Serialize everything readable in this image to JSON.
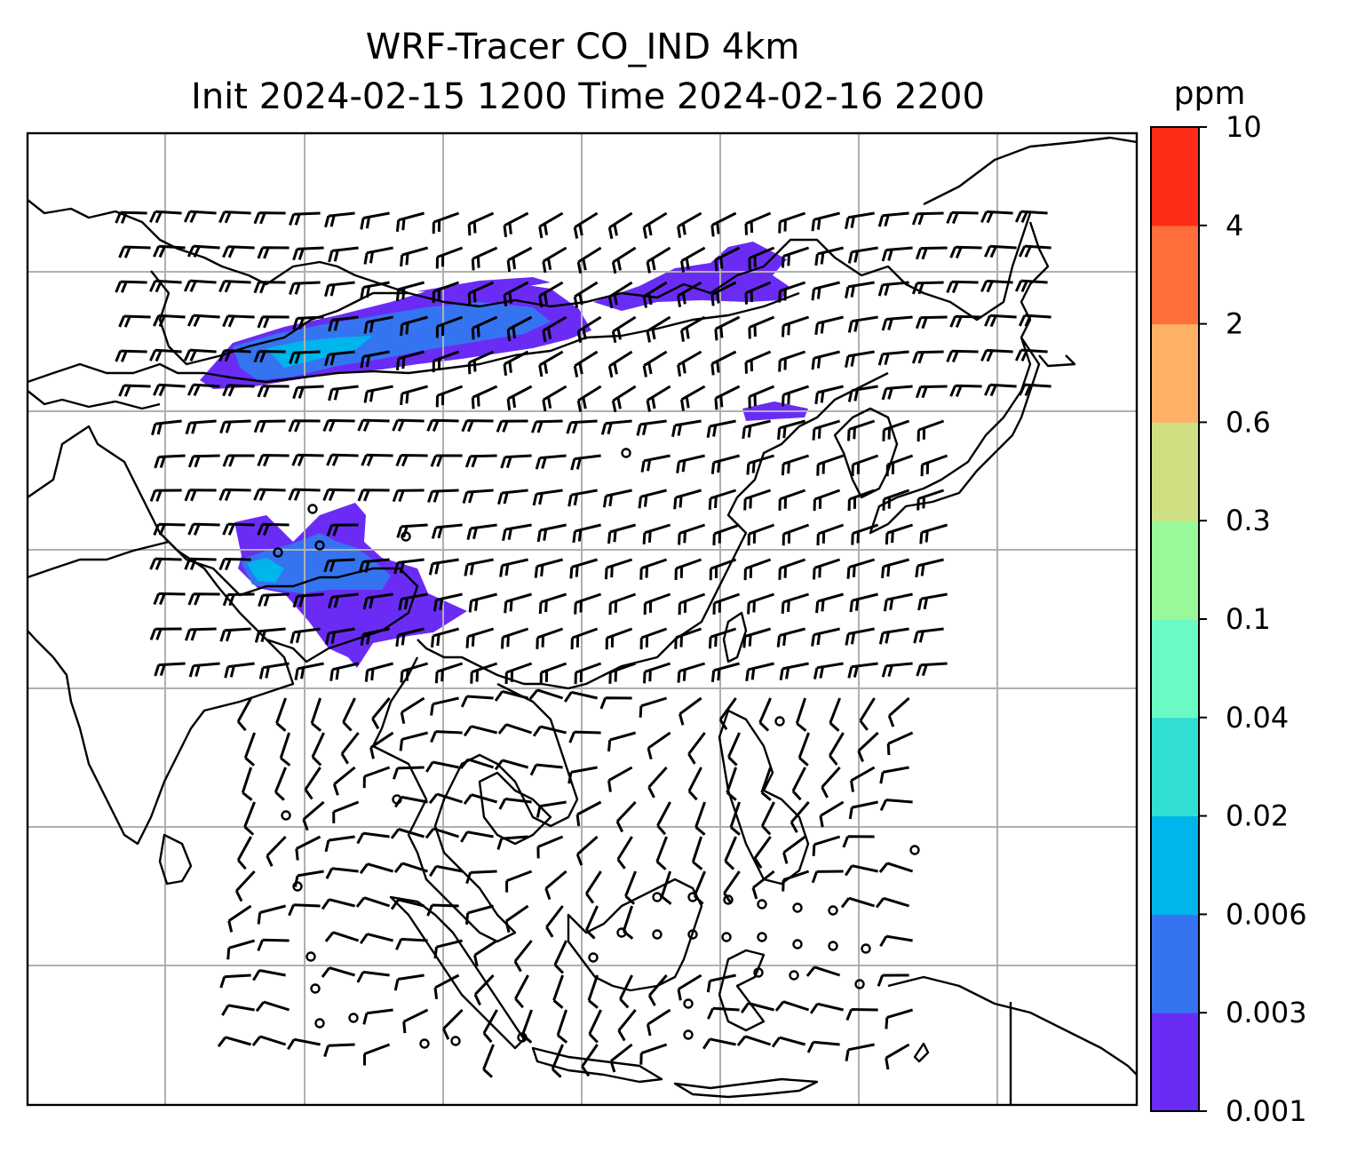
{
  "title": {
    "line1": "WRF-Tracer CO_IND 4km",
    "line2": "Init 2024-02-15 1200 Time 2024-02-16 2200"
  },
  "colorbar": {
    "unit": "ppm",
    "levels": [
      "0.001",
      "0.003",
      "0.006",
      "0.02",
      "0.04",
      "0.1",
      "0.3",
      "0.6",
      "2",
      "4",
      "10"
    ],
    "colors": [
      "#6a2cf5",
      "#3574f0",
      "#00b4ec",
      "#31dfd3",
      "#6bfac3",
      "#99f99a",
      "#cfe082",
      "#feb066",
      "#fe6d3a",
      "#fd2c16"
    ]
  },
  "map": {
    "plume_colors": {
      "low": "#6a2cf5",
      "mid": "#3574f0",
      "high": "#00b4ec",
      "peak": "#31dfd3"
    },
    "grid": "on",
    "wind_barbs": "on",
    "coastline_color": "#000000"
  }
}
